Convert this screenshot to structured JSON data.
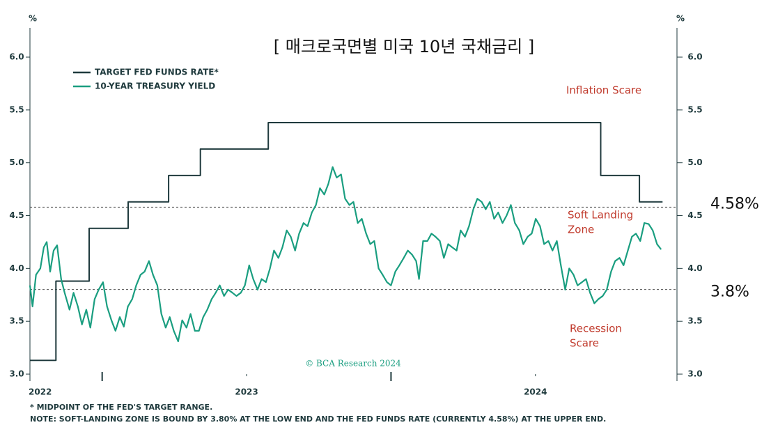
{
  "chart_data": {
    "type": "line",
    "title": "[ 매크로국면별 미국 10년 국채금리 ]",
    "y_unit": "%",
    "credit": "© BCA Research 2024",
    "footnotes": [
      "* MIDPOINT OF THE FED'S TARGET RANGE.",
      "NOTE: SOFT-LANDING ZONE IS BOUND BY 3.80% AT THE LOW END AND THE FED FUNDS RATE (CURRENTLY 4.58%) AT THE UPPER END."
    ],
    "annotations": [
      [
        "Inflation Scare"
      ],
      [
        "Soft Landing",
        "Zone"
      ],
      [
        "Recession",
        "Scare"
      ]
    ],
    "hlines": [
      {
        "value": 4.58,
        "label": "4.58%"
      },
      {
        "value": 3.8,
        "label": "3.8%"
      }
    ],
    "xlim": [
      2022.25,
      2024.49
    ],
    "xticks": [
      {
        "value": 2022.25,
        "label": "2022"
      },
      2023,
      2024
    ],
    "xminorticks": [
      2022.5,
      2023.5
    ],
    "ylim": [
      3,
      6
    ],
    "yticks": [
      {
        "value": 3,
        "label": "3.0"
      },
      {
        "value": 3.5,
        "label": "3.5"
      },
      {
        "value": 4,
        "label": "4.0"
      },
      {
        "value": 4.5,
        "label": "4.5"
      },
      {
        "value": 5,
        "label": "5.0"
      },
      {
        "value": 5.5,
        "label": "5.5"
      },
      {
        "value": 6,
        "label": "6.0"
      }
    ],
    "grid": false,
    "legend": "upper left",
    "series": [
      {
        "name": "TARGET FED FUNDS RATE*",
        "color": "#1f3a3d",
        "x": [
          2022.25,
          2022.34,
          2022.34,
          2022.455,
          2022.455,
          2022.59,
          2022.59,
          2022.73,
          2022.73,
          2022.84,
          2022.84,
          2023.075,
          2023.075,
          2024.226,
          2024.226,
          2024.36,
          2024.36,
          2024.44
        ],
        "values": [
          3.13,
          3.13,
          3.88,
          3.88,
          4.38,
          4.38,
          4.63,
          4.63,
          4.88,
          4.88,
          5.13,
          5.13,
          5.38,
          5.38,
          4.88,
          4.88,
          4.63,
          4.63
        ]
      },
      {
        "name": "10-YEAR TREASURY YIELD",
        "color": "#1a9e80",
        "x": [
          2022.25,
          2022.259,
          2022.271,
          2022.286,
          2022.298,
          2022.308,
          2022.32,
          2022.332,
          2022.344,
          2022.358,
          2022.37,
          2022.387,
          2022.401,
          2022.416,
          2022.43,
          2022.445,
          2022.459,
          2022.474,
          2022.488,
          2022.503,
          2022.517,
          2022.532,
          2022.546,
          2022.561,
          2022.575,
          2022.589,
          2022.604,
          2022.618,
          2022.633,
          2022.647,
          2022.662,
          2022.676,
          2022.691,
          2022.705,
          2022.72,
          2022.734,
          2022.748,
          2022.763,
          2022.777,
          2022.792,
          2022.806,
          2022.821,
          2022.835,
          2022.85,
          2022.864,
          2022.879,
          2022.893,
          2022.907,
          2022.922,
          2022.936,
          2022.951,
          2022.965,
          2022.98,
          2022.994,
          2023.009,
          2023.023,
          2023.038,
          2023.052,
          2023.067,
          2023.081,
          2023.095,
          2023.11,
          2023.124,
          2023.139,
          2023.153,
          2023.168,
          2023.182,
          2023.197,
          2023.211,
          2023.226,
          2023.24,
          2023.254,
          2023.269,
          2023.283,
          2023.298,
          2023.312,
          2023.327,
          2023.341,
          2023.356,
          2023.37,
          2023.385,
          2023.399,
          2023.414,
          2023.428,
          2023.442,
          2023.457,
          2023.471,
          2023.486,
          2023.5,
          2023.515,
          2023.529,
          2023.544,
          2023.558,
          2023.573,
          2023.587,
          2023.597,
          2023.611,
          2023.626,
          2023.64,
          2023.654,
          2023.669,
          2023.683,
          2023.698,
          2023.712,
          2023.727,
          2023.741,
          2023.756,
          2023.77,
          2023.785,
          2023.799,
          2023.814,
          2023.828,
          2023.842,
          2023.857,
          2023.871,
          2023.886,
          2023.9,
          2023.915,
          2023.929,
          2023.944,
          2023.958,
          2023.973,
          2023.987,
          2024.001,
          2024.016,
          2024.03,
          2024.045,
          2024.059,
          2024.074,
          2024.088,
          2024.103,
          2024.117,
          2024.132,
          2024.146,
          2024.161,
          2024.175,
          2024.189,
          2024.204,
          2024.218,
          2024.233,
          2024.247,
          2024.262,
          2024.276,
          2024.291,
          2024.305,
          2024.32,
          2024.334,
          2024.348,
          2024.363,
          2024.377,
          2024.392,
          2024.406,
          2024.421,
          2024.435
        ],
        "values": [
          3.84,
          3.64,
          3.94,
          4.0,
          4.2,
          4.25,
          3.97,
          4.17,
          4.22,
          3.9,
          3.77,
          3.61,
          3.77,
          3.64,
          3.47,
          3.61,
          3.44,
          3.71,
          3.8,
          3.87,
          3.64,
          3.51,
          3.41,
          3.54,
          3.45,
          3.64,
          3.71,
          3.84,
          3.94,
          3.97,
          4.07,
          3.94,
          3.84,
          3.57,
          3.44,
          3.54,
          3.41,
          3.31,
          3.51,
          3.44,
          3.57,
          3.41,
          3.41,
          3.54,
          3.61,
          3.71,
          3.77,
          3.84,
          3.74,
          3.8,
          3.77,
          3.74,
          3.77,
          3.84,
          4.03,
          3.9,
          3.8,
          3.9,
          3.87,
          4.0,
          4.17,
          4.1,
          4.2,
          4.36,
          4.3,
          4.17,
          4.33,
          4.43,
          4.4,
          4.53,
          4.6,
          4.76,
          4.7,
          4.8,
          4.96,
          4.86,
          4.89,
          4.66,
          4.6,
          4.63,
          4.43,
          4.47,
          4.33,
          4.23,
          4.26,
          4.0,
          3.94,
          3.87,
          3.84,
          3.97,
          4.03,
          4.1,
          4.17,
          4.13,
          4.07,
          3.9,
          4.26,
          4.26,
          4.33,
          4.3,
          4.26,
          4.1,
          4.23,
          4.2,
          4.17,
          4.36,
          4.3,
          4.4,
          4.56,
          4.66,
          4.63,
          4.56,
          4.63,
          4.47,
          4.53,
          4.43,
          4.5,
          4.6,
          4.43,
          4.36,
          4.23,
          4.3,
          4.33,
          4.47,
          4.4,
          4.23,
          4.26,
          4.17,
          4.26,
          4.03,
          3.8,
          4.0,
          3.94,
          3.84,
          3.87,
          3.9,
          3.77,
          3.67,
          3.71,
          3.74,
          3.8,
          3.97,
          4.07,
          4.1,
          4.03,
          4.17,
          4.3,
          4.33,
          4.26,
          4.43,
          4.42,
          4.36,
          4.23,
          4.18
        ]
      }
    ]
  }
}
